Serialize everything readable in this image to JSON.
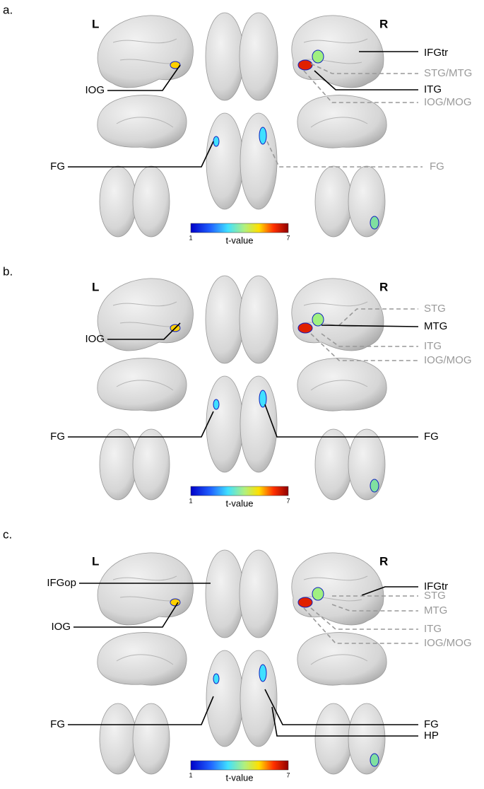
{
  "panels": [
    {
      "label": "a.",
      "left": "L",
      "right": "R",
      "annotations": [
        "IFGtr",
        "STG/MTG",
        "ITG",
        "IOG/MOG",
        "IOG",
        "FG",
        "FG"
      ],
      "colorbar": {
        "min": 1,
        "max": 7,
        "title": "t-value"
      }
    },
    {
      "label": "b.",
      "left": "L",
      "right": "R",
      "annotations": [
        "STG",
        "MTG",
        "ITG",
        "IOG/MOG",
        "IOG",
        "FG",
        "FG"
      ],
      "colorbar": {
        "min": 1,
        "max": 7,
        "title": "t-value"
      }
    },
    {
      "label": "c.",
      "left": "L",
      "right": "R",
      "annotations": [
        "IFGop",
        "IFGtr",
        "STG",
        "MTG",
        "IOG",
        "ITG",
        "IOG/MOG",
        "FG",
        "FG",
        "HP"
      ],
      "colorbar": {
        "min": 1,
        "max": 7,
        "title": "t-value"
      }
    }
  ]
}
